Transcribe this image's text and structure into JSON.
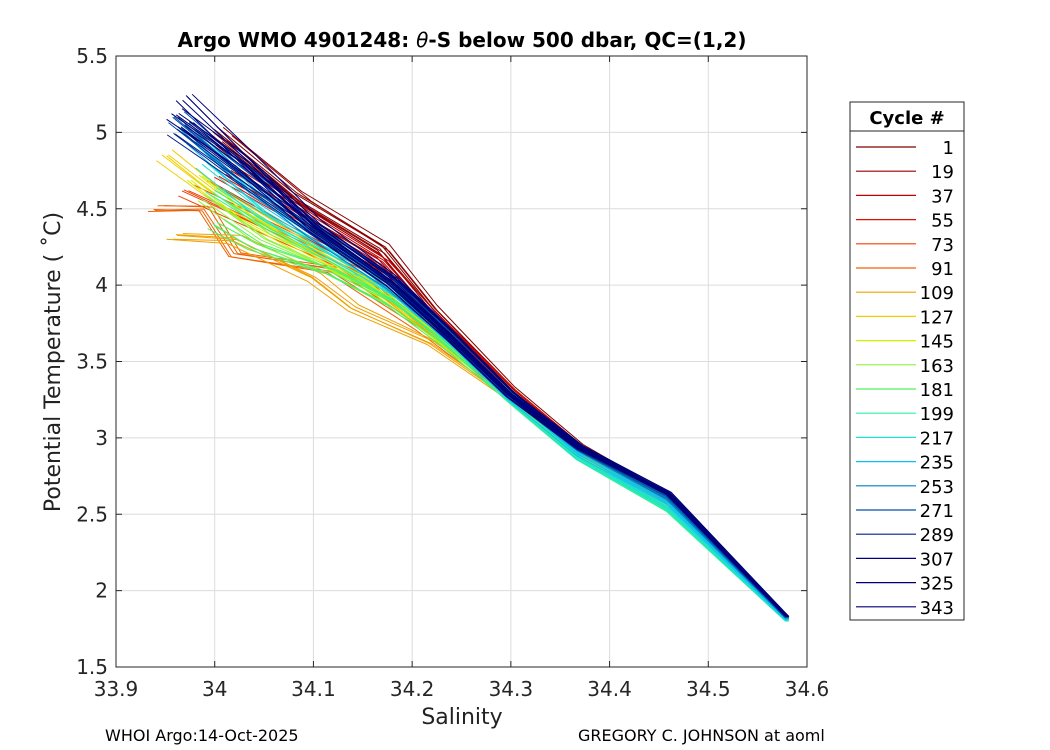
{
  "chart_data": {
    "type": "line",
    "title_prefix": "Argo WMO 4901248: ",
    "title_theta": "θ",
    "title_suffix": "-S below 500 dbar,  QC=(1,2)",
    "xlabel": "Salinity",
    "ylabel": "Potential Temperature ( ˚C)",
    "xlim": [
      33.9,
      34.6
    ],
    "ylim": [
      1.5,
      5.5
    ],
    "xticks": [
      33.9,
      34.0,
      34.1,
      34.2,
      34.3,
      34.4,
      34.5,
      34.6
    ],
    "xtick_labels": [
      "33.9",
      "34",
      "34.1",
      "34.2",
      "34.3",
      "34.4",
      "34.5",
      "34.6"
    ],
    "yticks": [
      1.5,
      2.0,
      2.5,
      3.0,
      3.5,
      4.0,
      4.5,
      5.0,
      5.5
    ],
    "ytick_labels": [
      "1.5",
      "2",
      "2.5",
      "3",
      "3.5",
      "4",
      "4.5",
      "5",
      "5.5"
    ],
    "grid": true,
    "legend": {
      "title": "Cycle #",
      "position": "right",
      "entries": [
        {
          "label": "1",
          "color": "#800000"
        },
        {
          "label": "19",
          "color": "#9a0000"
        },
        {
          "label": "37",
          "color": "#c00000"
        },
        {
          "label": "55",
          "color": "#e01000"
        },
        {
          "label": "73",
          "color": "#f04000"
        },
        {
          "label": "91",
          "color": "#f06000"
        },
        {
          "label": "109",
          "color": "#f0a000"
        },
        {
          "label": "127",
          "color": "#f0d000"
        },
        {
          "label": "145",
          "color": "#d0f000"
        },
        {
          "label": "163",
          "color": "#90f040"
        },
        {
          "label": "181",
          "color": "#50f060"
        },
        {
          "label": "199",
          "color": "#30f0a0"
        },
        {
          "label": "217",
          "color": "#20e0d0"
        },
        {
          "label": "235",
          "color": "#10c0f0"
        },
        {
          "label": "253",
          "color": "#0080c0"
        },
        {
          "label": "271",
          "color": "#0050b0"
        },
        {
          "label": "289",
          "color": "#002090"
        },
        {
          "label": "307",
          "color": "#000080"
        },
        {
          "label": "325",
          "color": "#000070"
        },
        {
          "label": "343",
          "color": "#00007a"
        }
      ]
    },
    "series": [
      {
        "name": "1",
        "color": "#800000",
        "points": [
          [
            34.0,
            5.02
          ],
          [
            34.08,
            4.6
          ],
          [
            34.17,
            4.25
          ],
          [
            34.22,
            3.85
          ],
          [
            34.3,
            3.32
          ],
          [
            34.37,
            2.95
          ],
          [
            34.46,
            2.62
          ],
          [
            34.58,
            1.83
          ]
        ]
      },
      {
        "name": "19",
        "color": "#9a0000",
        "points": [
          [
            34.01,
            4.95
          ],
          [
            34.09,
            4.52
          ],
          [
            34.17,
            4.2
          ],
          [
            34.22,
            3.82
          ],
          [
            34.3,
            3.31
          ],
          [
            34.37,
            2.94
          ],
          [
            34.46,
            2.61
          ],
          [
            34.58,
            1.83
          ]
        ]
      },
      {
        "name": "37",
        "color": "#c00000",
        "points": [
          [
            34.02,
            4.75
          ],
          [
            34.1,
            4.42
          ],
          [
            34.17,
            4.15
          ],
          [
            34.22,
            3.8
          ],
          [
            34.3,
            3.3
          ],
          [
            34.37,
            2.93
          ],
          [
            34.46,
            2.6
          ],
          [
            34.58,
            1.83
          ]
        ]
      },
      {
        "name": "55",
        "color": "#e01000",
        "points": [
          [
            34.0,
            4.7
          ],
          [
            34.08,
            4.4
          ],
          [
            34.16,
            4.12
          ],
          [
            34.22,
            3.78
          ],
          [
            34.3,
            3.3
          ],
          [
            34.37,
            2.92
          ],
          [
            34.46,
            2.59
          ],
          [
            34.58,
            1.82
          ]
        ]
      },
      {
        "name": "73",
        "color": "#f04000",
        "points": [
          [
            33.97,
            4.62
          ],
          [
            34.06,
            4.35
          ],
          [
            34.15,
            4.08
          ],
          [
            34.21,
            3.75
          ],
          [
            34.3,
            3.28
          ],
          [
            34.37,
            2.91
          ],
          [
            34.46,
            2.58
          ],
          [
            34.58,
            1.82
          ]
        ]
      },
      {
        "name": "91",
        "color": "#f06000",
        "points": [
          [
            33.94,
            4.5
          ],
          [
            33.99,
            4.5
          ],
          [
            34.02,
            4.2
          ],
          [
            34.12,
            4.1
          ],
          [
            34.21,
            3.72
          ],
          [
            34.3,
            3.28
          ],
          [
            34.37,
            2.9
          ],
          [
            34.46,
            2.57
          ],
          [
            34.58,
            1.82
          ]
        ]
      },
      {
        "name": "109",
        "color": "#f0a000",
        "points": [
          [
            33.96,
            4.32
          ],
          [
            34.02,
            4.3
          ],
          [
            34.1,
            4.05
          ],
          [
            34.14,
            3.85
          ],
          [
            34.22,
            3.62
          ],
          [
            34.3,
            3.26
          ],
          [
            34.37,
            2.89
          ],
          [
            34.46,
            2.56
          ],
          [
            34.58,
            1.81
          ]
        ]
      },
      {
        "name": "127",
        "color": "#f0d000",
        "points": [
          [
            33.95,
            4.85
          ],
          [
            34.0,
            4.6
          ],
          [
            34.08,
            4.3
          ],
          [
            34.16,
            4.0
          ],
          [
            34.22,
            3.7
          ],
          [
            34.3,
            3.27
          ],
          [
            34.37,
            2.89
          ],
          [
            34.46,
            2.56
          ],
          [
            34.58,
            1.81
          ]
        ]
      },
      {
        "name": "145",
        "color": "#d0f000",
        "points": [
          [
            33.98,
            4.7
          ],
          [
            34.03,
            4.45
          ],
          [
            34.1,
            4.2
          ],
          [
            34.17,
            3.95
          ],
          [
            34.22,
            3.7
          ],
          [
            34.3,
            3.27
          ],
          [
            34.37,
            2.88
          ],
          [
            34.46,
            2.55
          ],
          [
            34.58,
            1.81
          ]
        ]
      },
      {
        "name": "163",
        "color": "#90f040",
        "points": [
          [
            33.99,
            4.58
          ],
          [
            34.05,
            4.3
          ],
          [
            34.12,
            4.1
          ],
          [
            34.18,
            3.9
          ],
          [
            34.23,
            3.65
          ],
          [
            34.3,
            3.26
          ],
          [
            34.37,
            2.88
          ],
          [
            34.46,
            2.54
          ],
          [
            34.58,
            1.8
          ]
        ]
      },
      {
        "name": "181",
        "color": "#50f060",
        "points": [
          [
            34.0,
            4.4
          ],
          [
            34.04,
            4.25
          ],
          [
            34.12,
            4.08
          ],
          [
            34.18,
            3.88
          ],
          [
            34.23,
            3.64
          ],
          [
            34.3,
            3.26
          ],
          [
            34.37,
            2.87
          ],
          [
            34.46,
            2.53
          ],
          [
            34.58,
            1.8
          ]
        ]
      },
      {
        "name": "199",
        "color": "#30f0a0",
        "points": [
          [
            34.0,
            4.62
          ],
          [
            34.06,
            4.38
          ],
          [
            34.13,
            4.15
          ],
          [
            34.19,
            3.9
          ],
          [
            34.24,
            3.62
          ],
          [
            34.3,
            3.25
          ],
          [
            34.37,
            2.86
          ],
          [
            34.46,
            2.52
          ],
          [
            34.58,
            1.8
          ]
        ]
      },
      {
        "name": "217",
        "color": "#20e0d0",
        "points": [
          [
            33.99,
            4.8
          ],
          [
            34.05,
            4.48
          ],
          [
            34.12,
            4.2
          ],
          [
            34.19,
            3.93
          ],
          [
            34.24,
            3.63
          ],
          [
            34.3,
            3.26
          ],
          [
            34.37,
            2.87
          ],
          [
            34.46,
            2.54
          ],
          [
            34.58,
            1.8
          ]
        ]
      },
      {
        "name": "235",
        "color": "#10c0f0",
        "points": [
          [
            33.98,
            4.95
          ],
          [
            34.04,
            4.6
          ],
          [
            34.11,
            4.3
          ],
          [
            34.18,
            3.98
          ],
          [
            34.24,
            3.65
          ],
          [
            34.3,
            3.27
          ],
          [
            34.37,
            2.89
          ],
          [
            34.46,
            2.57
          ],
          [
            34.58,
            1.81
          ]
        ]
      },
      {
        "name": "253",
        "color": "#0080c0",
        "points": [
          [
            33.97,
            5.05
          ],
          [
            34.03,
            4.7
          ],
          [
            34.1,
            4.35
          ],
          [
            34.18,
            4.0
          ],
          [
            34.24,
            3.66
          ],
          [
            34.3,
            3.28
          ],
          [
            34.37,
            2.92
          ],
          [
            34.46,
            2.6
          ],
          [
            34.58,
            1.82
          ]
        ]
      },
      {
        "name": "271",
        "color": "#0050b0",
        "points": [
          [
            33.96,
            5.1
          ],
          [
            34.02,
            4.78
          ],
          [
            34.1,
            4.38
          ],
          [
            34.18,
            4.02
          ],
          [
            34.24,
            3.67
          ],
          [
            34.3,
            3.28
          ],
          [
            34.37,
            2.93
          ],
          [
            34.46,
            2.62
          ],
          [
            34.58,
            1.82
          ]
        ]
      },
      {
        "name": "289",
        "color": "#002090",
        "points": [
          [
            33.96,
            5.0
          ],
          [
            34.02,
            4.72
          ],
          [
            34.1,
            4.36
          ],
          [
            34.18,
            4.01
          ],
          [
            34.24,
            3.66
          ],
          [
            34.3,
            3.28
          ],
          [
            34.37,
            2.93
          ],
          [
            34.46,
            2.63
          ],
          [
            34.58,
            1.83
          ]
        ]
      },
      {
        "name": "307",
        "color": "#000080",
        "points": [
          [
            33.97,
            5.23
          ],
          [
            34.03,
            4.85
          ],
          [
            34.1,
            4.4
          ],
          [
            34.18,
            4.03
          ],
          [
            34.24,
            3.67
          ],
          [
            34.3,
            3.29
          ],
          [
            34.37,
            2.94
          ],
          [
            34.46,
            2.64
          ],
          [
            34.58,
            1.83
          ]
        ]
      },
      {
        "name": "325",
        "color": "#000070",
        "points": [
          [
            33.96,
            5.12
          ],
          [
            34.03,
            4.8
          ],
          [
            34.1,
            4.39
          ],
          [
            34.18,
            4.02
          ],
          [
            34.24,
            3.66
          ],
          [
            34.3,
            3.28
          ],
          [
            34.37,
            2.94
          ],
          [
            34.46,
            2.64
          ],
          [
            34.58,
            1.83
          ]
        ]
      },
      {
        "name": "343",
        "color": "#00007a",
        "points": [
          [
            33.97,
            5.05
          ],
          [
            34.03,
            4.76
          ],
          [
            34.1,
            4.38
          ],
          [
            34.18,
            4.02
          ],
          [
            34.24,
            3.66
          ],
          [
            34.3,
            3.28
          ],
          [
            34.37,
            2.94
          ],
          [
            34.46,
            2.63
          ],
          [
            34.58,
            1.83
          ]
        ]
      }
    ]
  },
  "footer": {
    "left": "WHOI Argo:14-Oct-2025",
    "right": "GREGORY C. JOHNSON at aoml"
  }
}
